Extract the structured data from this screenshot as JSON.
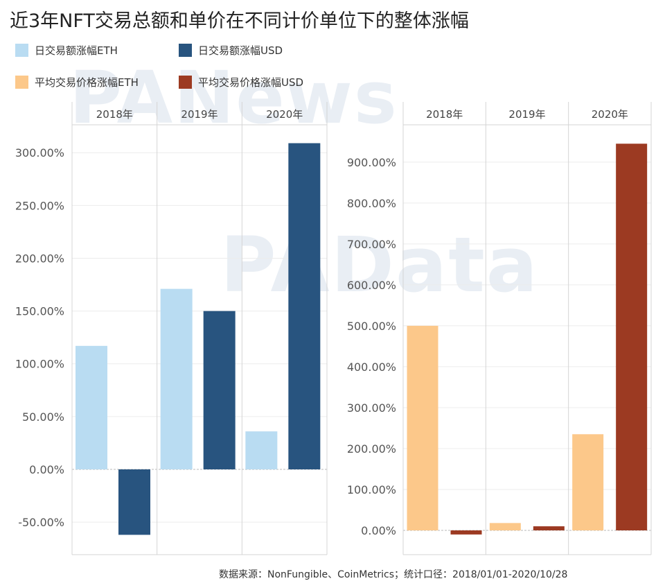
{
  "title": "近3年NFT交易总额和单价在不同计价单位下的整体涨幅",
  "legend": [
    {
      "label": "日交易额涨幅ETH",
      "color": "#b9dcf2"
    },
    {
      "label": "日交易额涨幅USD",
      "color": "#28547f"
    },
    {
      "label": "平均交易价格涨幅ETH",
      "color": "#fcc88a"
    },
    {
      "label": "平均交易价格涨幅USD",
      "color": "#9c3a22"
    }
  ],
  "watermarks": [
    "PANews",
    "PAData"
  ],
  "footer": "数据来源：NonFungible、CoinMetrics；统计口径：2018/01/01-2020/10/28",
  "chart_data": [
    {
      "type": "bar",
      "categories": [
        "2018年",
        "2019年",
        "2020年"
      ],
      "series": [
        {
          "name": "日交易额涨幅ETH",
          "values": [
            117,
            171,
            36
          ],
          "color": "#b9dcf2"
        },
        {
          "name": "日交易额涨幅USD",
          "values": [
            -62,
            150,
            309
          ],
          "color": "#28547f"
        }
      ],
      "ylim": [
        -80,
        352
      ],
      "yticks": [
        -50,
        0,
        50,
        100,
        150,
        200,
        250,
        300
      ],
      "ytick_labels": [
        "-50.00%",
        "0.00%",
        "50.00%",
        "100.00%",
        "150.00%",
        "200.00%",
        "250.00%",
        "300.00%"
      ]
    },
    {
      "type": "bar",
      "categories": [
        "2018年",
        "2019年",
        "2020年"
      ],
      "series": [
        {
          "name": "平均交易价格涨幅ETH",
          "values": [
            500,
            18,
            235
          ],
          "color": "#fcc88a"
        },
        {
          "name": "平均交易价格涨幅USD",
          "values": [
            -10,
            10,
            945
          ],
          "color": "#9c3a22"
        }
      ],
      "ylim": [
        -55,
        1020
      ],
      "yticks": [
        0,
        100,
        200,
        300,
        400,
        500,
        600,
        700,
        800,
        900
      ],
      "ytick_labels": [
        "0.00%",
        "100.00%",
        "200.00%",
        "300.00%",
        "400.00%",
        "500.00%",
        "600.00%",
        "700.00%",
        "800.00%",
        "900.00%"
      ]
    }
  ]
}
